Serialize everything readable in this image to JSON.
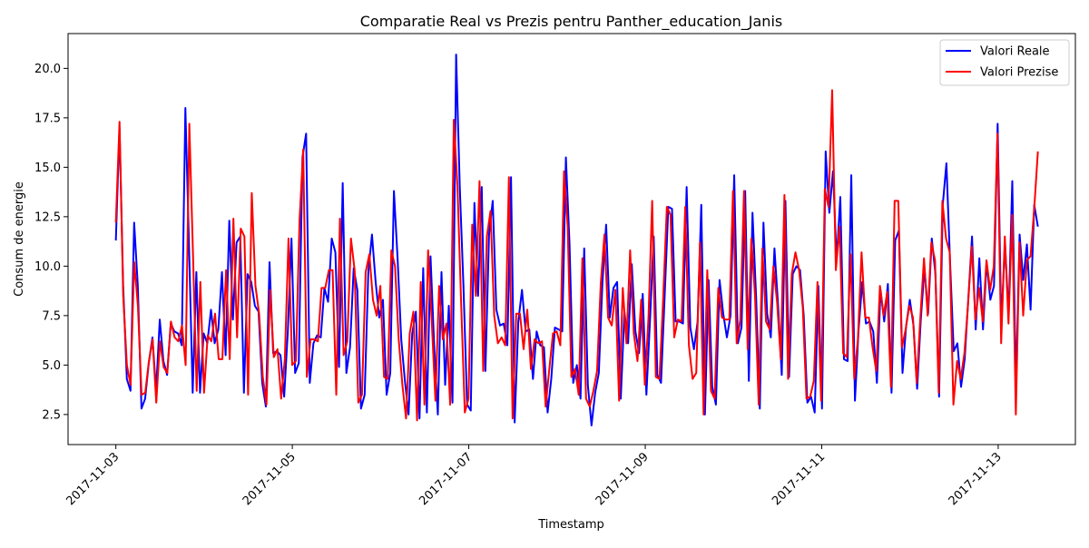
{
  "chart_data": {
    "type": "line",
    "title": "Comparatie Real vs Prezis pentru Panther_education_Janis",
    "xlabel": "Timestamp",
    "ylabel": "Consum de energie",
    "x_start": "2017-11-03",
    "x_end": "2017-11-13",
    "xlim": [
      "2017-11-02T11:00",
      "2017-11-13T21:00"
    ],
    "ylim": [
      0.98,
      21.76
    ],
    "x_ticks": [
      "2017-11-03",
      "2017-11-05",
      "2017-11-07",
      "2017-11-09",
      "2017-11-11",
      "2017-11-13"
    ],
    "y_ticks": [
      2.5,
      5.0,
      7.5,
      10.0,
      12.5,
      15.0,
      17.5,
      20.0
    ],
    "y_tick_labels": [
      "2.5",
      "5.0",
      "7.5",
      "10.0",
      "12.5",
      "15.0",
      "17.5",
      "20.0"
    ],
    "legend_position": "top-right",
    "grid": false,
    "series": [
      {
        "name": "Valori Reale",
        "color": "#0000ff",
        "values": [
          11.3,
          17.0,
          9.0,
          4.3,
          3.7,
          12.2,
          9.0,
          2.8,
          3.3,
          5.1,
          6.4,
          3.7,
          7.3,
          5.2,
          4.5,
          7.1,
          6.7,
          6.6,
          6.0,
          18.0,
          11.0,
          3.6,
          9.7,
          3.6,
          6.6,
          6.1,
          7.8,
          6.1,
          6.8,
          9.7,
          5.5,
          12.3,
          7.3,
          11.2,
          11.5,
          3.6,
          9.6,
          9.2,
          8.0,
          7.7,
          4.1,
          2.9,
          10.2,
          5.6,
          5.7,
          5.5,
          3.4,
          6.7,
          11.4,
          4.6,
          5.1,
          15.5,
          16.7,
          4.1,
          6.1,
          6.5,
          6.4,
          8.9,
          8.2,
          11.4,
          10.7,
          4.9,
          14.2,
          4.6,
          5.9,
          9.9,
          8.8,
          2.8,
          3.5,
          9.7,
          11.6,
          9.2,
          7.4,
          8.3,
          3.5,
          4.6,
          13.8,
          10.4,
          6.3,
          4.2,
          2.5,
          6.6,
          7.7,
          2.3,
          9.9,
          2.6,
          10.5,
          6.0,
          2.5,
          9.7,
          4.0,
          8.0,
          3.1,
          20.7,
          14.0,
          9.0,
          3.0,
          2.7,
          13.2,
          8.5,
          14.0,
          4.7,
          11.6,
          13.3,
          7.8,
          7.0,
          7.1,
          6.0,
          14.5,
          2.1,
          7.2,
          8.8,
          6.7,
          6.8,
          4.3,
          6.7,
          6.0,
          5.9,
          2.6,
          4.3,
          6.9,
          6.8,
          6.7,
          15.5,
          11.1,
          4.1,
          5.0,
          3.3,
          10.9,
          4.0,
          1.95,
          3.6,
          4.6,
          9.2,
          12.1,
          7.4,
          8.9,
          9.2,
          3.3,
          7.7,
          6.1,
          10.1,
          6.7,
          5.6,
          8.6,
          3.5,
          7.3,
          11.5,
          4.5,
          4.1,
          8.5,
          13.0,
          12.9,
          7.2,
          7.2,
          7.1,
          14.0,
          6.9,
          5.8,
          7.2,
          13.1,
          2.5,
          9.3,
          3.9,
          3.0,
          9.3,
          7.6,
          6.4,
          7.5,
          14.6,
          6.1,
          6.9,
          13.8,
          4.2,
          12.7,
          8.4,
          2.8,
          12.2,
          7.6,
          6.4,
          10.9,
          8.0,
          4.5,
          13.3,
          4.4,
          9.6,
          10.0,
          9.8,
          7.5,
          3.1,
          3.4,
          2.6,
          9.0,
          2.8,
          15.8,
          12.7,
          14.8,
          10.3,
          13.5,
          5.3,
          5.2,
          14.6,
          3.2,
          6.8,
          9.2,
          7.1,
          7.2,
          6.7,
          4.1,
          8.8,
          7.2,
          9.1,
          3.6,
          11.3,
          11.8,
          4.6,
          7.0,
          8.3,
          7.0,
          3.8,
          7.3,
          9.9,
          7.6,
          11.4,
          9.6,
          3.4,
          13.1,
          15.2,
          10.2,
          5.7,
          6.1,
          3.9,
          5.3,
          8.4,
          11.5,
          6.8,
          10.4,
          6.8,
          10.2,
          8.3,
          9.0,
          17.2,
          7.0,
          11.2,
          7.5,
          14.3,
          3.9,
          11.6,
          9.3,
          11.1,
          7.8,
          13.1,
          12.0
        ]
      },
      {
        "name": "Valori Prezise",
        "color": "#ff0000",
        "values": [
          12.2,
          17.3,
          8.5,
          5.0,
          4.0,
          10.2,
          8.0,
          3.5,
          3.6,
          5.2,
          6.3,
          3.1,
          6.2,
          4.9,
          4.6,
          7.2,
          6.4,
          6.2,
          7.0,
          5.0,
          17.2,
          10.6,
          3.7,
          9.2,
          3.6,
          6.5,
          6.2,
          7.6,
          5.3,
          5.3,
          9.8,
          5.3,
          12.4,
          6.4,
          11.9,
          11.5,
          3.5,
          13.7,
          9.0,
          7.6,
          4.4,
          3.0,
          8.8,
          5.4,
          5.8,
          3.3,
          5.3,
          11.4,
          5.0,
          5.2,
          12.3,
          15.9,
          4.4,
          6.3,
          6.3,
          6.2,
          8.9,
          8.9,
          9.8,
          9.8,
          3.5,
          12.4,
          5.5,
          6.2,
          11.4,
          9.8,
          3.1,
          3.5,
          9.7,
          10.6,
          8.3,
          7.5,
          9.0,
          4.4,
          4.3,
          10.8,
          10.0,
          6.3,
          4.0,
          2.3,
          6.6,
          7.7,
          2.2,
          9.2,
          3.0,
          10.8,
          7.2,
          3.2,
          9.0,
          6.3,
          7.1,
          3.0,
          17.4,
          14.0,
          8.1,
          2.6,
          3.3,
          12.1,
          8.5,
          14.3,
          4.7,
          11.5,
          12.8,
          7.5,
          6.1,
          6.4,
          6.0,
          14.5,
          2.3,
          7.6,
          7.6,
          5.8,
          7.8,
          4.8,
          6.3,
          6.1,
          6.2,
          2.9,
          4.8,
          6.6,
          6.7,
          6.0,
          14.8,
          12.0,
          4.4,
          4.8,
          3.5,
          10.4,
          3.3,
          2.9,
          3.7,
          4.7,
          9.1,
          11.6,
          7.4,
          7.0,
          8.8,
          3.2,
          8.9,
          6.1,
          10.8,
          6.6,
          5.2,
          8.3,
          4.0,
          7.4,
          13.3,
          4.4,
          4.3,
          8.4,
          13.0,
          12.6,
          6.4,
          7.3,
          7.2,
          13.0,
          6.0,
          4.3,
          4.6,
          11.2,
          2.5,
          9.8,
          3.7,
          3.3,
          8.9,
          7.4,
          7.3,
          7.3,
          13.8,
          6.1,
          7.3,
          13.8,
          5.8,
          11.4,
          8.5,
          3.0,
          10.9,
          7.2,
          6.8,
          10.0,
          8.2,
          5.3,
          13.6,
          4.3,
          9.6,
          10.7,
          9.8,
          7.9,
          3.3,
          3.4,
          4.2,
          9.2,
          3.2,
          13.9,
          13.0,
          18.9,
          9.8,
          12.0,
          5.6,
          5.4,
          10.6,
          4.3,
          6.3,
          10.7,
          7.4,
          7.4,
          5.9,
          4.7,
          9.0,
          7.5,
          8.7,
          3.9,
          13.3,
          13.3,
          5.9,
          6.8,
          8.0,
          7.4,
          4.1,
          7.4,
          10.4,
          7.5,
          11.2,
          10.3,
          3.6,
          13.3,
          11.4,
          10.7,
          3.0,
          5.2,
          4.3,
          5.6,
          8.1,
          11.0,
          7.3,
          8.9,
          7.2,
          10.3,
          8.8,
          10.0,
          16.7,
          6.1,
          11.5,
          7.1,
          12.6,
          2.5,
          11.2,
          7.5,
          10.3,
          10.5,
          12.9,
          15.8
        ]
      }
    ]
  }
}
